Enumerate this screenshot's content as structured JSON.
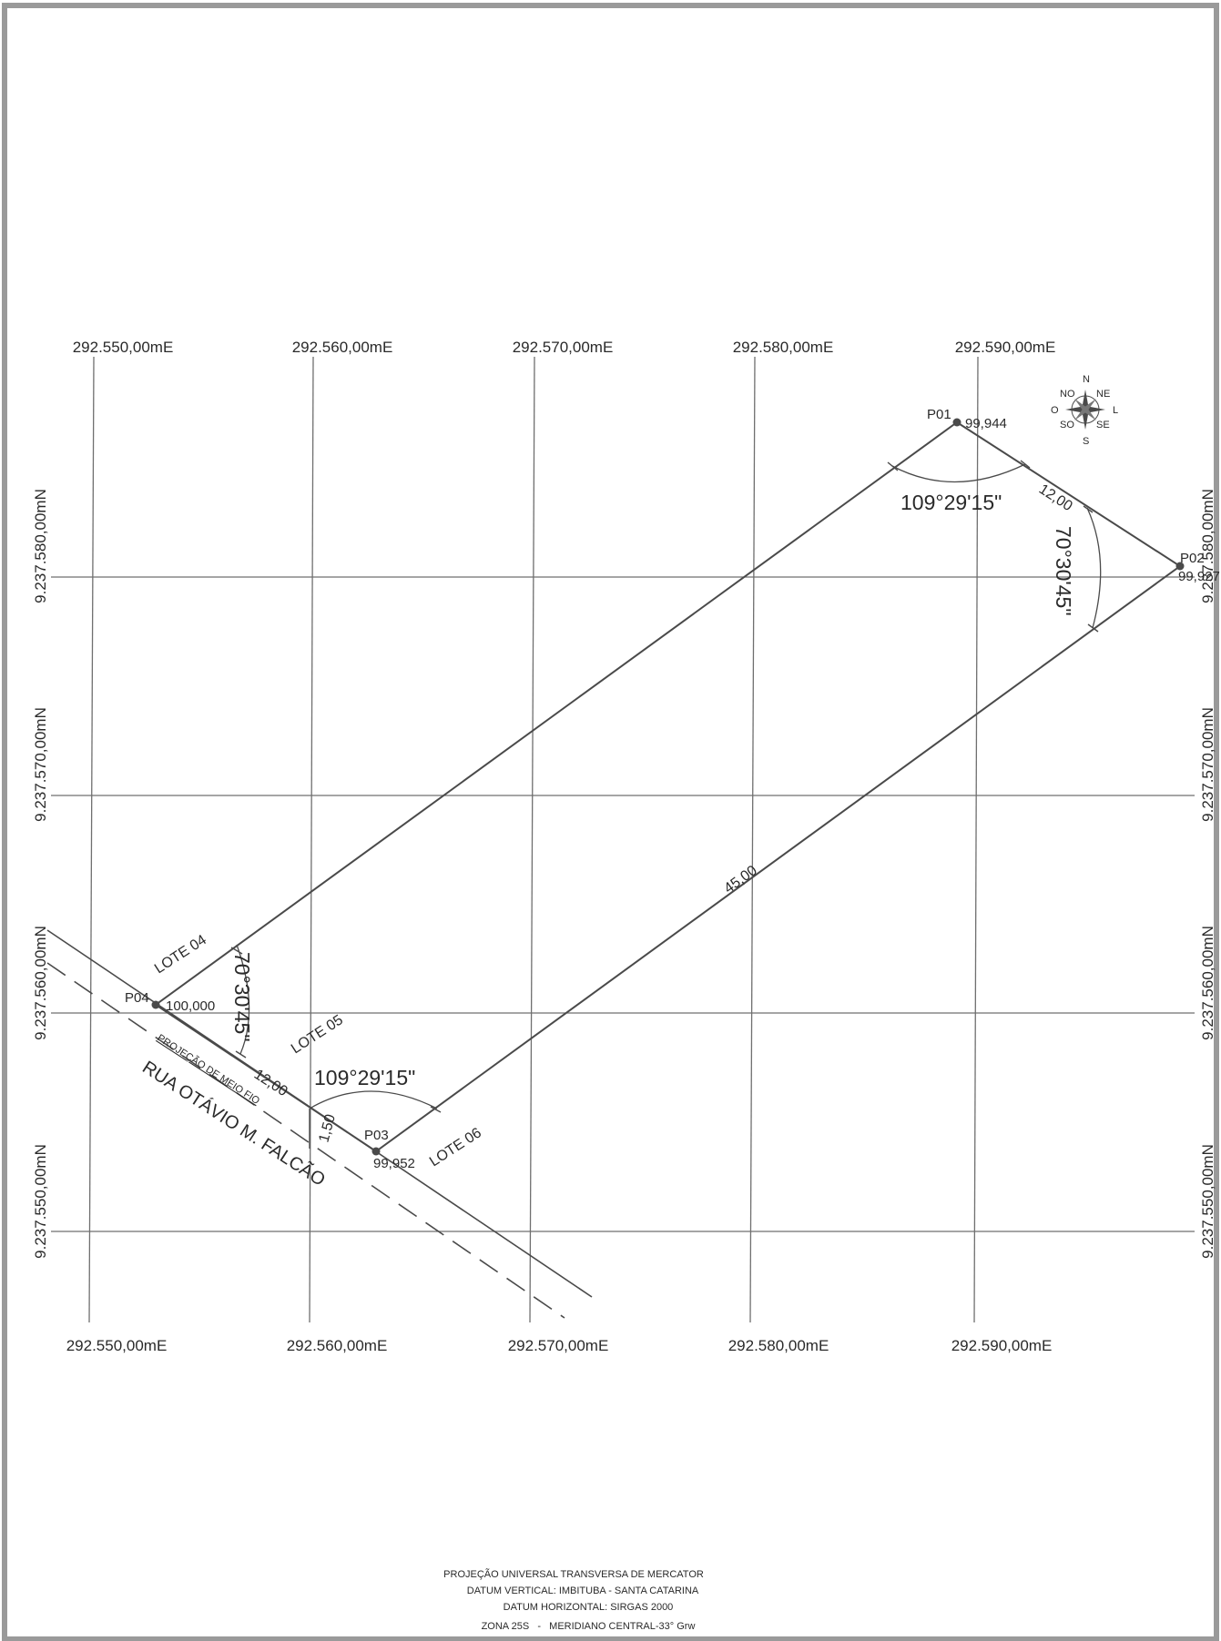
{
  "grid": {
    "easting_top": [
      "292.550,00mE",
      "292.560,00mE",
      "292.570,00mE",
      "292.580,00mE",
      "292.590,00mE"
    ],
    "easting_bottom": [
      "292.550,00mE",
      "292.560,00mE",
      "292.570,00mE",
      "292.580,00mE",
      "292.590,00mE"
    ],
    "northing_left": [
      "9.237.580,00mN",
      "9.237.570,00mN",
      "9.237.560,00mN",
      "9.237.550,00mN"
    ],
    "northing_right": [
      "9.237.580,00mN",
      "9.237.570,00mN",
      "9.237.560,00mN",
      "9.237.550,00mN"
    ]
  },
  "points": [
    {
      "name": "P01",
      "elevation": "99,944"
    },
    {
      "name": "P02",
      "elevation": "99,927"
    },
    {
      "name": "P03",
      "elevation": "99,952"
    },
    {
      "name": "P04",
      "elevation": "100,000"
    }
  ],
  "dimensions": {
    "front": "12,00",
    "back": "12,00",
    "side": "45,00",
    "offset": "1,50"
  },
  "angles": {
    "p01": "109°29'15\"",
    "p02": "70°30'45\"",
    "p03": "109°29'15\"",
    "p04": "70°30'45\""
  },
  "lots": {
    "lote04": "LOTE 04",
    "lote05": "LOTE 05",
    "lote06": "LOTE 06"
  },
  "street": {
    "name": "RUA OTÁVIO M. FALCÃO",
    "projection": "PROJEÇÃO DE MEIO FIO"
  },
  "compass": {
    "n": "N",
    "s": "S",
    "e": "L",
    "w": "O",
    "ne": "NE",
    "nw": "NO",
    "se": "SE",
    "sw": "SO"
  },
  "footer": {
    "line1": "PROJEÇÃO UNIVERSAL TRANSVERSA DE MERCATOR",
    "line2": "DATUM VERTICAL: IMBITUBA - SANTA CATARINA",
    "line3": "DATUM HORIZONTAL: SIRGAS 2000",
    "line4": "ZONA 25S   -   MERIDIANO CENTRAL-33° Grw"
  },
  "colors": {
    "ink": "#4a4a4a",
    "grid": "#6f6f6f",
    "paper": "#ffffff"
  }
}
